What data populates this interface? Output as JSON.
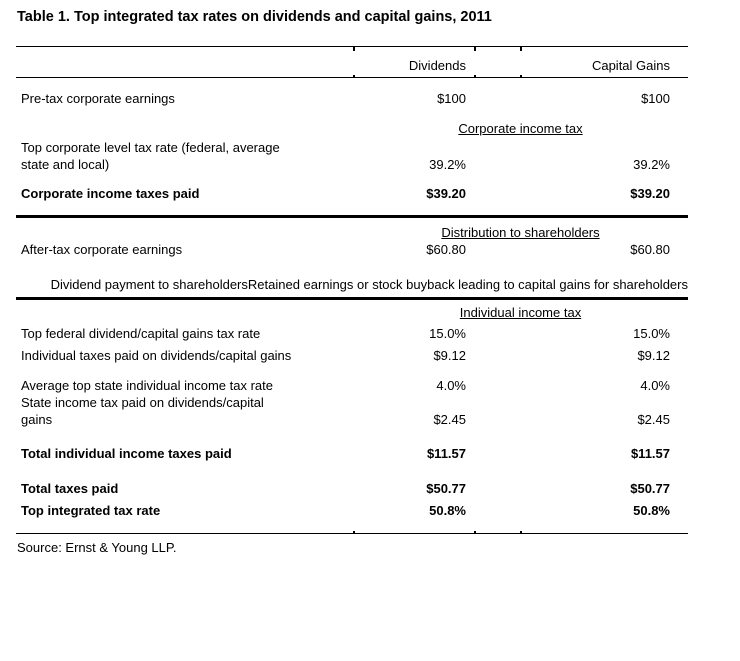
{
  "title": "Table 1. Top integrated tax rates on dividends and capital gains, 2011",
  "table": {
    "col_headers": [
      "Dividends",
      "Capital Gains"
    ],
    "pretax": {
      "label": "Pre-tax corporate earnings",
      "div": "$100",
      "cg": "$100"
    },
    "sec_corporate": "Corporate income tax",
    "corp_rate": {
      "label": "Top corporate level tax rate (federal, average\nstate and local)",
      "div": "39.2%",
      "cg": "39.2%"
    },
    "corp_paid": {
      "label": "Corporate income taxes paid",
      "div": "$39.20",
      "cg": "$39.20"
    },
    "sec_distribution": "Distribution to shareholders",
    "aftertax": {
      "label": "After-tax corporate earnings",
      "div": "$60.80",
      "cg": "$60.80"
    },
    "subhead_div": "Dividend\npayment to\nshareholders",
    "subhead_cg": "Retained earnings\nor stock buyback\nleading to capital\ngains for\nshareholders",
    "sec_individual": "Individual income tax",
    "fed_rate": {
      "label": "Top federal dividend/capital gains tax rate",
      "div": "15.0%",
      "cg": "15.0%"
    },
    "ind_paid": {
      "label": "Individual taxes paid on dividends/capital gains",
      "div": "$9.12",
      "cg": "$9.12"
    },
    "state_rate": {
      "label": "Average top state individual income tax rate",
      "div": "4.0%",
      "cg": "4.0%"
    },
    "state_paid": {
      "label": "State income tax paid on dividends/capital\ngains",
      "div": "$2.45",
      "cg": "$2.45"
    },
    "total_ind": {
      "label": "Total individual income taxes paid",
      "div": "$11.57",
      "cg": "$11.57"
    },
    "total_taxes": {
      "label": "Total taxes paid",
      "div": "$50.77",
      "cg": "$50.77"
    },
    "integrated": {
      "label": "Top integrated tax rate",
      "div": "50.8%",
      "cg": "50.8%"
    }
  },
  "source": "Source: Ernst & Young LLP."
}
